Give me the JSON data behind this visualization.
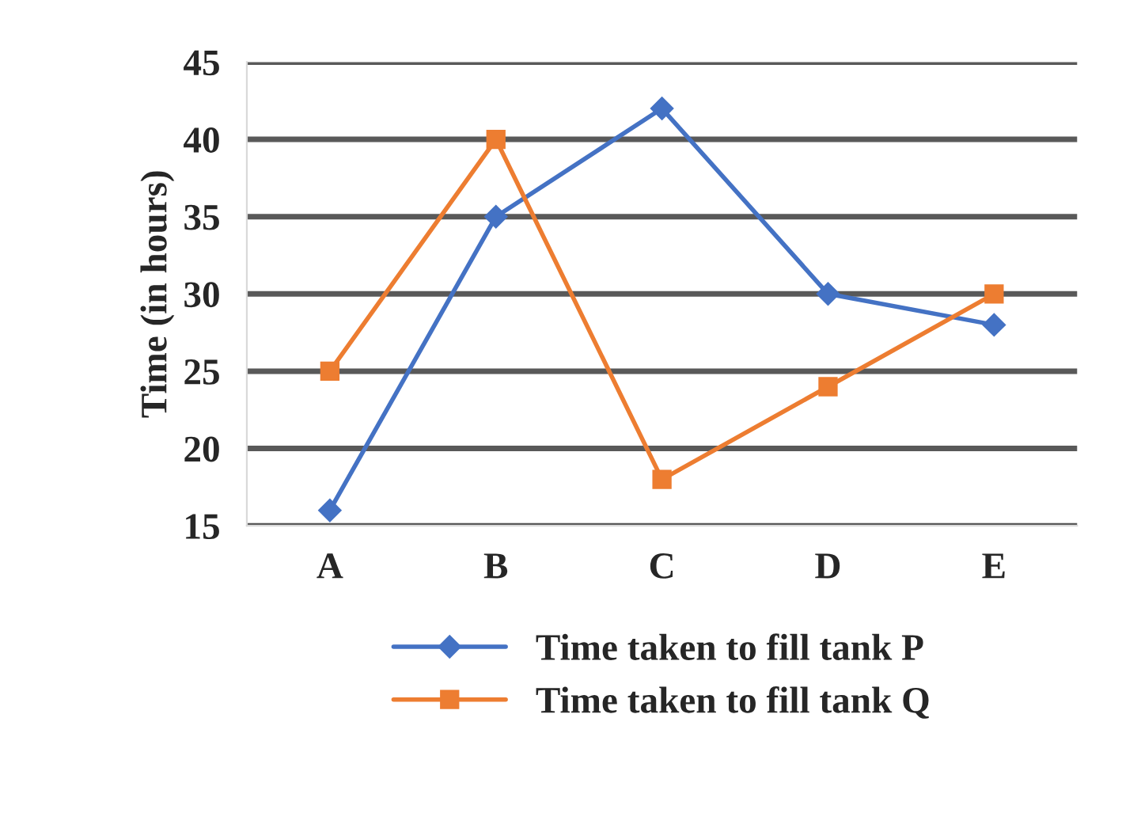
{
  "chart_data": {
    "type": "line",
    "ylabel": "Time (in hours)",
    "categories": [
      "A",
      "B",
      "C",
      "D",
      "E"
    ],
    "series": [
      {
        "name": "Time taken to fill tank P",
        "color": "#4472c4",
        "marker": "diamond",
        "values": [
          16,
          35,
          42,
          30,
          28
        ]
      },
      {
        "name": "Time taken to fill tank Q",
        "color": "#ed7d31",
        "marker": "square",
        "values": [
          25,
          40,
          18,
          24,
          30
        ]
      }
    ],
    "ylim": [
      15,
      45
    ],
    "yticks": [
      15,
      20,
      25,
      30,
      35,
      40,
      45
    ],
    "grid": "y",
    "legend": "bottom",
    "line_style": "solid"
  }
}
